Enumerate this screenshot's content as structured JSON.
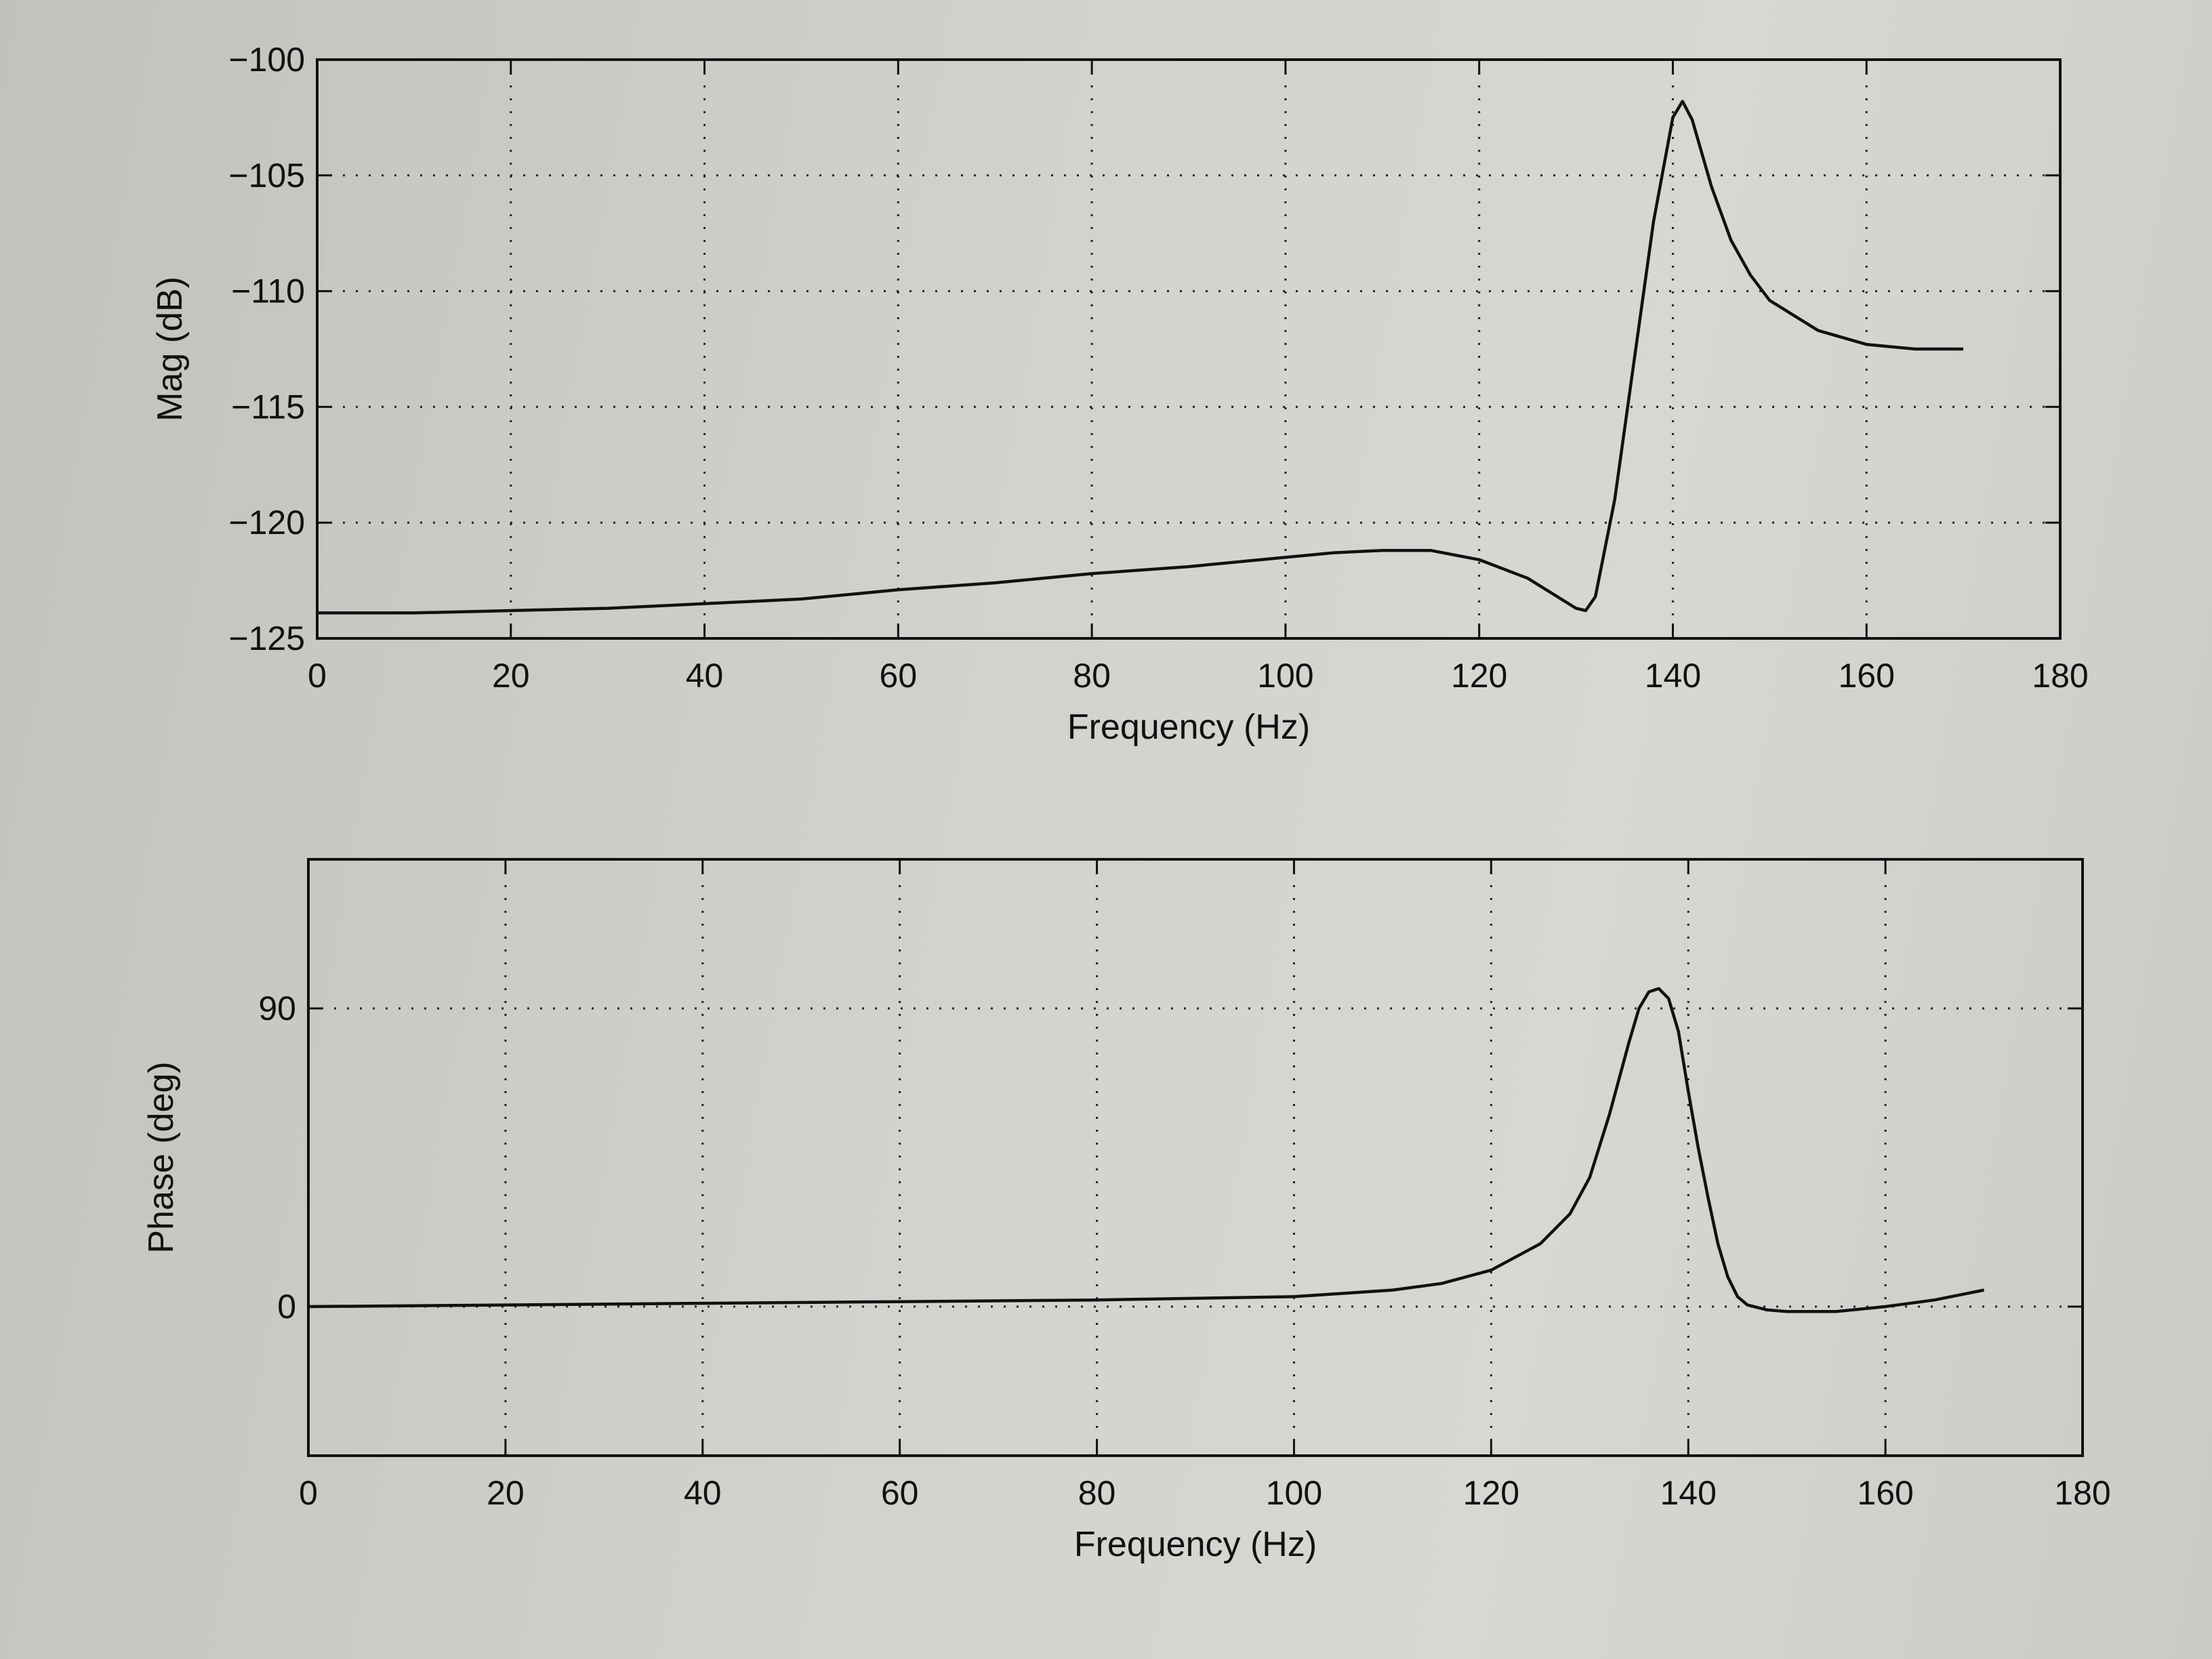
{
  "chart_data": [
    {
      "type": "line",
      "title": "",
      "xlabel": "Frequency (Hz)",
      "ylabel": "Mag (dB)",
      "xlim": [
        0,
        180
      ],
      "ylim": [
        -125,
        -100
      ],
      "xticks": [
        0,
        20,
        40,
        60,
        80,
        100,
        120,
        140,
        160,
        180
      ],
      "yticks": [
        -100,
        -105,
        -110,
        -115,
        -120,
        -125
      ],
      "grid": true,
      "series": [
        {
          "x": [
            0,
            10,
            20,
            30,
            40,
            50,
            60,
            70,
            80,
            90,
            100,
            105,
            110,
            115,
            120,
            125,
            130,
            131,
            132,
            134,
            136,
            138,
            140,
            141,
            142,
            144,
            146,
            148,
            150,
            155,
            160,
            165,
            170
          ],
          "values": [
            -123.9,
            -123.9,
            -123.8,
            -123.7,
            -123.5,
            -123.3,
            -122.9,
            -122.6,
            -122.2,
            -121.9,
            -121.5,
            -121.3,
            -121.2,
            -121.2,
            -121.6,
            -122.4,
            -123.7,
            -123.8,
            -123.2,
            -119.0,
            -113.0,
            -107.0,
            -102.5,
            -101.8,
            -102.6,
            -105.5,
            -107.8,
            -109.3,
            -110.4,
            -111.7,
            -112.3,
            -112.5,
            -112.5
          ]
        }
      ]
    },
    {
      "type": "line",
      "title": "",
      "xlabel": "Frequency (Hz)",
      "ylabel": "Phase (deg)",
      "xlim": [
        0,
        180
      ],
      "ylim": [
        -45,
        135
      ],
      "xticks": [
        0,
        20,
        40,
        60,
        80,
        100,
        120,
        140,
        160,
        180
      ],
      "yticks": [
        0,
        90
      ],
      "grid": true,
      "series": [
        {
          "x": [
            0,
            20,
            40,
            60,
            80,
            100,
            110,
            115,
            120,
            125,
            128,
            130,
            132,
            134,
            135,
            136,
            137,
            138,
            139,
            140,
            141,
            142,
            143,
            144,
            145,
            146,
            148,
            150,
            155,
            160,
            165,
            170
          ],
          "values": [
            0,
            0.5,
            1,
            1.5,
            2,
            3,
            5,
            7,
            11,
            19,
            28,
            39,
            58,
            80,
            90,
            95,
            96,
            93,
            83,
            65,
            48,
            33,
            19,
            9,
            3,
            0.5,
            -1,
            -1.5,
            -1.5,
            0,
            2,
            5
          ]
        }
      ]
    }
  ]
}
